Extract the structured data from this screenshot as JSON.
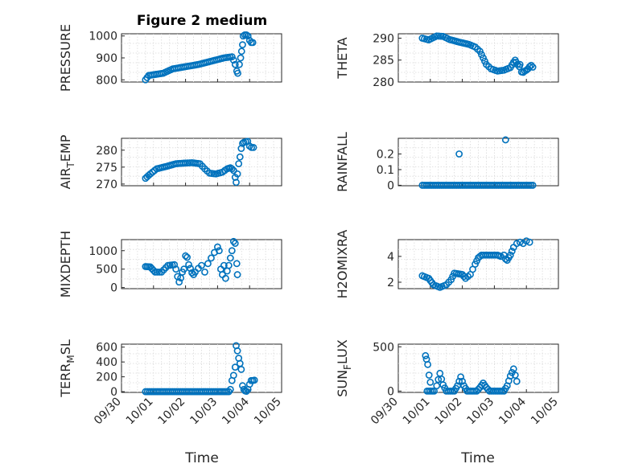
{
  "figure": {
    "title": "Figure 2 medium",
    "xlabel": "Time",
    "color": "#0072BD"
  },
  "chart_data": [
    {
      "type": "scatter",
      "name": "pressure",
      "title": "Figure 2 medium",
      "ylabel": "PRESSURE",
      "ylabel_sub": "",
      "xlim": [
        0,
        5
      ],
      "ylim": [
        790,
        1010
      ],
      "yticks": [
        800,
        900,
        1000
      ],
      "ytick_labels": [
        "800",
        "900",
        "1000"
      ],
      "xtick_labels": [],
      "grid": true,
      "segments": [
        [
          0.75,
          800
        ],
        [
          0.85,
          820
        ],
        [
          1.3,
          830
        ],
        [
          1.6,
          850
        ],
        [
          2.0,
          860
        ],
        [
          2.4,
          870
        ],
        [
          2.8,
          885
        ],
        [
          3.2,
          900
        ],
        [
          3.45,
          905
        ]
      ],
      "points": [
        [
          3.5,
          890
        ],
        [
          3.55,
          870
        ],
        [
          3.6,
          840
        ],
        [
          3.63,
          830
        ],
        [
          3.68,
          870
        ],
        [
          3.72,
          900
        ],
        [
          3.75,
          930
        ],
        [
          3.78,
          960
        ],
        [
          3.8,
          1000
        ],
        [
          3.85,
          1005
        ],
        [
          3.9,
          1005
        ],
        [
          3.95,
          1000
        ],
        [
          4.0,
          980
        ],
        [
          4.05,
          970
        ],
        [
          4.1,
          970
        ]
      ]
    },
    {
      "type": "scatter",
      "name": "theta",
      "title": "",
      "ylabel": "THETA",
      "ylabel_sub": "",
      "xlim": [
        0,
        5
      ],
      "ylim": [
        280,
        291
      ],
      "yticks": [
        280,
        285,
        290
      ],
      "ytick_labels": [
        "280",
        "285",
        "290"
      ],
      "xtick_labels": [],
      "grid": true,
      "segments": [
        [
          0.75,
          290
        ],
        [
          0.95,
          289.6
        ],
        [
          1.2,
          290.5
        ],
        [
          1.4,
          290.4
        ],
        [
          1.6,
          289.7
        ],
        [
          1.9,
          289.1
        ],
        [
          2.2,
          288.6
        ],
        [
          2.4,
          288
        ],
        [
          2.55,
          287
        ],
        [
          2.65,
          285.5
        ],
        [
          2.75,
          284
        ],
        [
          2.9,
          283
        ],
        [
          3.1,
          282.5
        ],
        [
          3.3,
          282.7
        ],
        [
          3.5,
          283.3
        ],
        [
          3.6,
          284.5
        ],
        [
          3.65,
          285
        ]
      ],
      "points": [
        [
          3.68,
          284.5
        ],
        [
          3.72,
          284
        ],
        [
          3.78,
          283.5
        ],
        [
          3.8,
          284
        ],
        [
          3.85,
          282.3
        ],
        [
          3.9,
          282.2
        ],
        [
          3.95,
          282.5
        ],
        [
          4.0,
          282.7
        ],
        [
          4.05,
          283
        ],
        [
          4.1,
          283.5
        ],
        [
          4.15,
          283.8
        ],
        [
          4.2,
          283.4
        ]
      ]
    },
    {
      "type": "scatter",
      "name": "air_temp",
      "title": "",
      "ylabel": "AIR",
      "ylabel_sub": "T",
      "ylabel_suffix": "EMP",
      "xlim": [
        0,
        5
      ],
      "ylim": [
        269.5,
        283.5
      ],
      "yticks": [
        270,
        275,
        280
      ],
      "ytick_labels": [
        "270",
        "275",
        "280"
      ],
      "xtick_labels": [],
      "grid": true,
      "segments": [
        [
          0.75,
          271.7
        ],
        [
          0.9,
          273
        ],
        [
          1.1,
          274.5
        ],
        [
          1.4,
          275.2
        ],
        [
          1.7,
          276
        ],
        [
          2.0,
          276.2
        ],
        [
          2.2,
          276.3
        ],
        [
          2.45,
          276
        ],
        [
          2.6,
          274.5
        ],
        [
          2.75,
          273.2
        ],
        [
          2.95,
          273
        ],
        [
          3.15,
          273.5
        ],
        [
          3.3,
          274.5
        ],
        [
          3.4,
          274.8
        ]
      ],
      "points": [
        [
          3.45,
          274.5
        ],
        [
          3.5,
          274
        ],
        [
          3.55,
          272
        ],
        [
          3.58,
          270.5
        ],
        [
          3.62,
          273
        ],
        [
          3.66,
          276
        ],
        [
          3.7,
          278
        ],
        [
          3.74,
          280.5
        ],
        [
          3.78,
          282
        ],
        [
          3.82,
          282.3
        ],
        [
          3.88,
          282.5
        ],
        [
          3.94,
          282.6
        ],
        [
          4.0,
          281.2
        ],
        [
          4.06,
          280.8
        ],
        [
          4.12,
          280.8
        ]
      ]
    },
    {
      "type": "scatter",
      "name": "rainfall",
      "title": "",
      "ylabel": "RAINFALL",
      "ylabel_sub": "",
      "xlim": [
        0,
        5
      ],
      "ylim": [
        -0.003,
        0.3
      ],
      "yticks": [
        0,
        0.1,
        0.2
      ],
      "ytick_labels": [
        "0",
        "0.1",
        "0.2"
      ],
      "xtick_labels": [],
      "grid": true,
      "segments": [
        [
          0.75,
          0
        ],
        [
          4.2,
          0
        ]
      ],
      "points": [
        [
          1.9,
          0.2
        ],
        [
          3.35,
          0.29
        ]
      ]
    },
    {
      "type": "scatter",
      "name": "mixdepth",
      "title": "",
      "ylabel": "MIXDEPTH",
      "ylabel_sub": "",
      "xlim": [
        0,
        5
      ],
      "ylim": [
        -30,
        1300
      ],
      "yticks": [
        0,
        500,
        1000
      ],
      "ytick_labels": [
        "0",
        "500",
        "1000"
      ],
      "xtick_labels": [],
      "grid": true,
      "segments": [
        [
          0.75,
          570
        ],
        [
          0.9,
          560
        ],
        [
          1.05,
          420
        ],
        [
          1.25,
          420
        ],
        [
          1.45,
          600
        ],
        [
          1.65,
          620
        ]
      ],
      "points": [
        [
          1.7,
          500
        ],
        [
          1.75,
          300
        ],
        [
          1.8,
          150
        ],
        [
          1.85,
          260
        ],
        [
          1.9,
          420
        ],
        [
          1.95,
          500
        ],
        [
          2.0,
          860
        ],
        [
          2.05,
          820
        ],
        [
          2.1,
          620
        ],
        [
          2.15,
          520
        ],
        [
          2.2,
          400
        ],
        [
          2.25,
          350
        ],
        [
          2.3,
          420
        ],
        [
          2.4,
          520
        ],
        [
          2.5,
          600
        ],
        [
          2.6,
          420
        ],
        [
          2.7,
          650
        ],
        [
          2.8,
          800
        ],
        [
          2.9,
          950
        ],
        [
          3.0,
          1100
        ],
        [
          3.05,
          1000
        ],
        [
          3.1,
          500
        ],
        [
          3.15,
          350
        ],
        [
          3.2,
          600
        ],
        [
          3.25,
          250
        ],
        [
          3.3,
          450
        ],
        [
          3.35,
          600
        ],
        [
          3.4,
          800
        ],
        [
          3.45,
          1000
        ],
        [
          3.5,
          1250
        ],
        [
          3.55,
          1200
        ],
        [
          3.6,
          650
        ],
        [
          3.62,
          350
        ]
      ]
    },
    {
      "type": "scatter",
      "name": "h2omixra",
      "title": "",
      "ylabel": "H2OMIXRA",
      "ylabel_sub": "",
      "xlim": [
        0,
        5
      ],
      "ylim": [
        1.5,
        5.3
      ],
      "yticks": [
        2,
        4
      ],
      "ytick_labels": [
        "2",
        "4"
      ],
      "xtick_labels": [],
      "grid": true,
      "segments": [
        [
          0.75,
          2.5
        ],
        [
          0.95,
          2.3
        ],
        [
          1.1,
          1.8
        ],
        [
          1.3,
          1.6
        ],
        [
          1.5,
          1.8
        ],
        [
          1.65,
          2.2
        ],
        [
          1.75,
          2.7
        ],
        [
          2.0,
          2.6
        ],
        [
          2.1,
          2.3
        ],
        [
          2.25,
          2.6
        ],
        [
          2.4,
          3.4
        ],
        [
          2.5,
          3.9
        ],
        [
          2.6,
          4.1
        ],
        [
          3.1,
          4.1
        ],
        [
          3.2,
          4.0
        ]
      ],
      "points": [
        [
          3.3,
          4.1
        ],
        [
          3.35,
          3.8
        ],
        [
          3.4,
          3.7
        ],
        [
          3.45,
          3.9
        ],
        [
          3.5,
          4.1
        ],
        [
          3.55,
          4.4
        ],
        [
          3.6,
          4.7
        ],
        [
          3.7,
          5.0
        ],
        [
          3.8,
          5.1
        ],
        [
          3.9,
          5.0
        ],
        [
          4.0,
          5.2
        ],
        [
          4.1,
          5.1
        ]
      ]
    },
    {
      "type": "scatter",
      "name": "terr_msl",
      "title": "",
      "ylabel": "TERR",
      "ylabel_sub": "M",
      "ylabel_suffix": "SL",
      "xlim": [
        0,
        5
      ],
      "ylim": [
        -10,
        640
      ],
      "yticks": [
        0,
        200,
        400,
        600
      ],
      "ytick_labels": [
        "0",
        "200",
        "400",
        "600"
      ],
      "xtick_labels": [
        "09/30",
        "10/01",
        "10/02",
        "10/03",
        "10/04",
        "10/05"
      ],
      "grid": true,
      "segments": [
        [
          0.75,
          0
        ],
        [
          3.35,
          0
        ]
      ],
      "points": [
        [
          3.4,
          30
        ],
        [
          3.45,
          150
        ],
        [
          3.5,
          220
        ],
        [
          3.55,
          330
        ],
        [
          3.58,
          620
        ],
        [
          3.62,
          550
        ],
        [
          3.66,
          450
        ],
        [
          3.7,
          380
        ],
        [
          3.74,
          300
        ],
        [
          3.78,
          80
        ],
        [
          3.82,
          30
        ],
        [
          3.86,
          10
        ],
        [
          3.9,
          5
        ],
        [
          3.95,
          30
        ],
        [
          4.0,
          100
        ],
        [
          4.05,
          150
        ],
        [
          4.1,
          150
        ],
        [
          4.15,
          155
        ]
      ]
    },
    {
      "type": "scatter",
      "name": "sun_flux",
      "title": "",
      "ylabel": "SUN",
      "ylabel_sub": "F",
      "ylabel_suffix": "LUX",
      "xlim": [
        0,
        5
      ],
      "ylim": [
        -15,
        530
      ],
      "yticks": [
        0,
        500
      ],
      "ytick_labels": [
        "0",
        "500"
      ],
      "xtick_labels": [
        "09/30",
        "10/01",
        "10/02",
        "10/03",
        "10/04",
        "10/05"
      ],
      "grid": true,
      "segments": [
        [
          0.9,
          0
        ],
        [
          1.12,
          0
        ],
        [
          1.2,
          60
        ],
        [
          1.3,
          200
        ],
        [
          1.4,
          70
        ],
        [
          1.5,
          0
        ],
        [
          1.75,
          0
        ],
        [
          1.85,
          60
        ],
        [
          1.95,
          160
        ],
        [
          2.05,
          60
        ],
        [
          2.15,
          0
        ],
        [
          2.45,
          0
        ],
        [
          2.55,
          40
        ],
        [
          2.65,
          90
        ],
        [
          2.75,
          40
        ],
        [
          2.85,
          0
        ],
        [
          3.3,
          0
        ],
        [
          3.4,
          60
        ],
        [
          3.5,
          170
        ],
        [
          3.6,
          250
        ],
        [
          3.7,
          110
        ]
      ],
      "points": [
        [
          0.85,
          400
        ],
        [
          0.88,
          360
        ],
        [
          0.92,
          300
        ],
        [
          0.96,
          180
        ],
        [
          1.0,
          100
        ]
      ]
    }
  ]
}
